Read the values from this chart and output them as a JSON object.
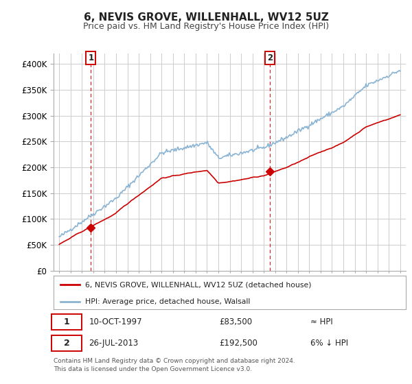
{
  "title": "6, NEVIS GROVE, WILLENHALL, WV12 5UZ",
  "subtitle": "Price paid vs. HM Land Registry's House Price Index (HPI)",
  "legend_line1": "6, NEVIS GROVE, WILLENHALL, WV12 5UZ (detached house)",
  "legend_line2": "HPI: Average price, detached house, Walsall",
  "annotation1_label": "1",
  "annotation1_date": "10-OCT-1997",
  "annotation1_price": "£83,500",
  "annotation1_hpi": "≈ HPI",
  "annotation2_label": "2",
  "annotation2_date": "26-JUL-2013",
  "annotation2_price": "£192,500",
  "annotation2_hpi": "6% ↓ HPI",
  "footer_line1": "Contains HM Land Registry data © Crown copyright and database right 2024.",
  "footer_line2": "This data is licensed under the Open Government Licence v3.0.",
  "price_color": "#cc0000",
  "hpi_color": "#8ab4d4",
  "background_color": "#ffffff",
  "grid_color": "#cccccc",
  "ylim": [
    0,
    420000
  ],
  "yticks": [
    0,
    50000,
    100000,
    150000,
    200000,
    250000,
    300000,
    350000,
    400000
  ],
  "sale1_year": 1997.78,
  "sale1_price": 83500,
  "sale2_year": 2013.56,
  "sale2_price": 192500
}
